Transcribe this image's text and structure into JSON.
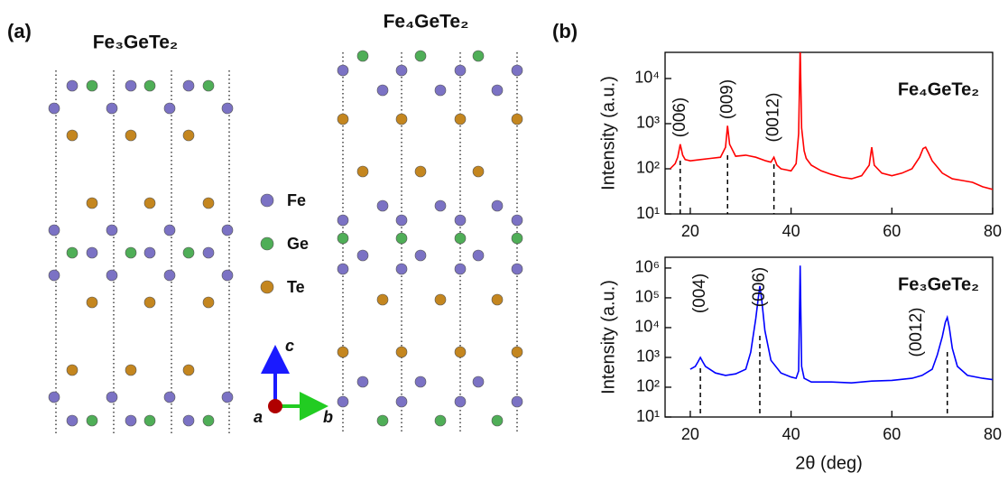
{
  "structure": {
    "panel_label": "(a)",
    "titles": [
      "Fe₃GeTe₂",
      "Fe₄GeTe₂"
    ],
    "legend": [
      "Fe",
      "Ge",
      "Te"
    ],
    "colors": [
      "#7b72c4",
      "#4fae57",
      "#c4861f"
    ],
    "axes": [
      "c",
      "a",
      "b"
    ]
  },
  "panel_b_label": "(b)",
  "chart_data": [
    {
      "type": "line",
      "log_y": true,
      "y_label": "Intensity (a.u.)",
      "annotation_title": "Fe₄GeTe₂",
      "xlim": [
        15,
        80
      ],
      "xticks": [
        20,
        40,
        60,
        80
      ],
      "ylim": [
        10,
        38000
      ],
      "yticks": [
        {
          "value": 10,
          "label": "10¹"
        },
        {
          "value": 100,
          "label": "10²"
        },
        {
          "value": 1000,
          "label": "10³"
        },
        {
          "value": 10000,
          "label": "10⁴"
        }
      ],
      "x": [
        16,
        17,
        17.5,
        18,
        18.5,
        19,
        20,
        22,
        24,
        26,
        27,
        27.4,
        27.8,
        29,
        31,
        33,
        35,
        36,
        36.6,
        37.2,
        38,
        39,
        40,
        41,
        41.5,
        41.8,
        42.1,
        42.6,
        43,
        44,
        46,
        48,
        50,
        52,
        54,
        55.5,
        56,
        56.5,
        58,
        60,
        62,
        64,
        65.5,
        66.2,
        66.7,
        67.3,
        68,
        70,
        72,
        74,
        76,
        78,
        80
      ],
      "series": [
        {
          "name": "Fe₄GeTe₂",
          "color": "#ff0000",
          "values": [
            100,
            130,
            180,
            350,
            200,
            160,
            150,
            160,
            170,
            180,
            300,
            900,
            350,
            190,
            200,
            180,
            150,
            140,
            180,
            120,
            100,
            95,
            90,
            130,
            600,
            50000,
            800,
            250,
            170,
            120,
            90,
            75,
            65,
            60,
            70,
            120,
            300,
            120,
            80,
            70,
            80,
            100,
            180,
            280,
            300,
            220,
            150,
            80,
            60,
            55,
            50,
            40,
            35
          ]
        }
      ],
      "annotations": [
        {
          "text": "(006)",
          "x": 18
        },
        {
          "text": "(009)",
          "x": 27.4
        },
        {
          "text": "(0012)",
          "x": 36.6
        }
      ],
      "peak_lines": [
        18,
        27.4,
        36.6
      ]
    },
    {
      "type": "line",
      "log_y": true,
      "y_label": "Intensity (a.u.)",
      "x_label": "2θ (deg)",
      "annotation_title": "Fe₃GeTe₂",
      "xlim": [
        15,
        80
      ],
      "xticks": [
        20,
        40,
        60,
        80
      ],
      "ylim": [
        10,
        2300000
      ],
      "yticks": [
        {
          "value": 10,
          "label": "10¹"
        },
        {
          "value": 100,
          "label": "10²"
        },
        {
          "value": 1000,
          "label": "10³"
        },
        {
          "value": 10000,
          "label": "10⁴"
        },
        {
          "value": 100000,
          "label": "10⁵"
        },
        {
          "value": 1000000,
          "label": "10⁶"
        }
      ],
      "x": [
        20,
        21,
        21.5,
        22,
        22.5,
        23,
        25,
        27,
        29,
        31,
        32,
        33,
        33.5,
        33.8,
        34.2,
        34.8,
        36,
        38,
        40,
        41,
        41.5,
        41.8,
        42.1,
        42.6,
        44,
        48,
        52,
        56,
        60,
        64,
        66,
        68,
        69,
        70,
        70.6,
        71,
        71.4,
        72,
        73,
        75,
        78,
        80
      ],
      "series": [
        {
          "name": "Fe₃GeTe₂",
          "color": "#0000ff",
          "values": [
            400,
            500,
            700,
            1000,
            700,
            500,
            300,
            250,
            280,
            400,
            1500,
            20000,
            100000,
            250000,
            80000,
            8000,
            800,
            300,
            220,
            200,
            350,
            1200000,
            500,
            200,
            150,
            150,
            140,
            160,
            170,
            200,
            250,
            400,
            1200,
            5000,
            15000,
            22000,
            10000,
            2000,
            500,
            250,
            200,
            180
          ]
        }
      ],
      "annotations": [
        {
          "text": "(004)",
          "x": 22
        },
        {
          "text": "(006)",
          "x": 33.8
        },
        {
          "text": "(0012)",
          "x": 65
        }
      ],
      "peak_lines": [
        22,
        33.8,
        71
      ]
    }
  ]
}
